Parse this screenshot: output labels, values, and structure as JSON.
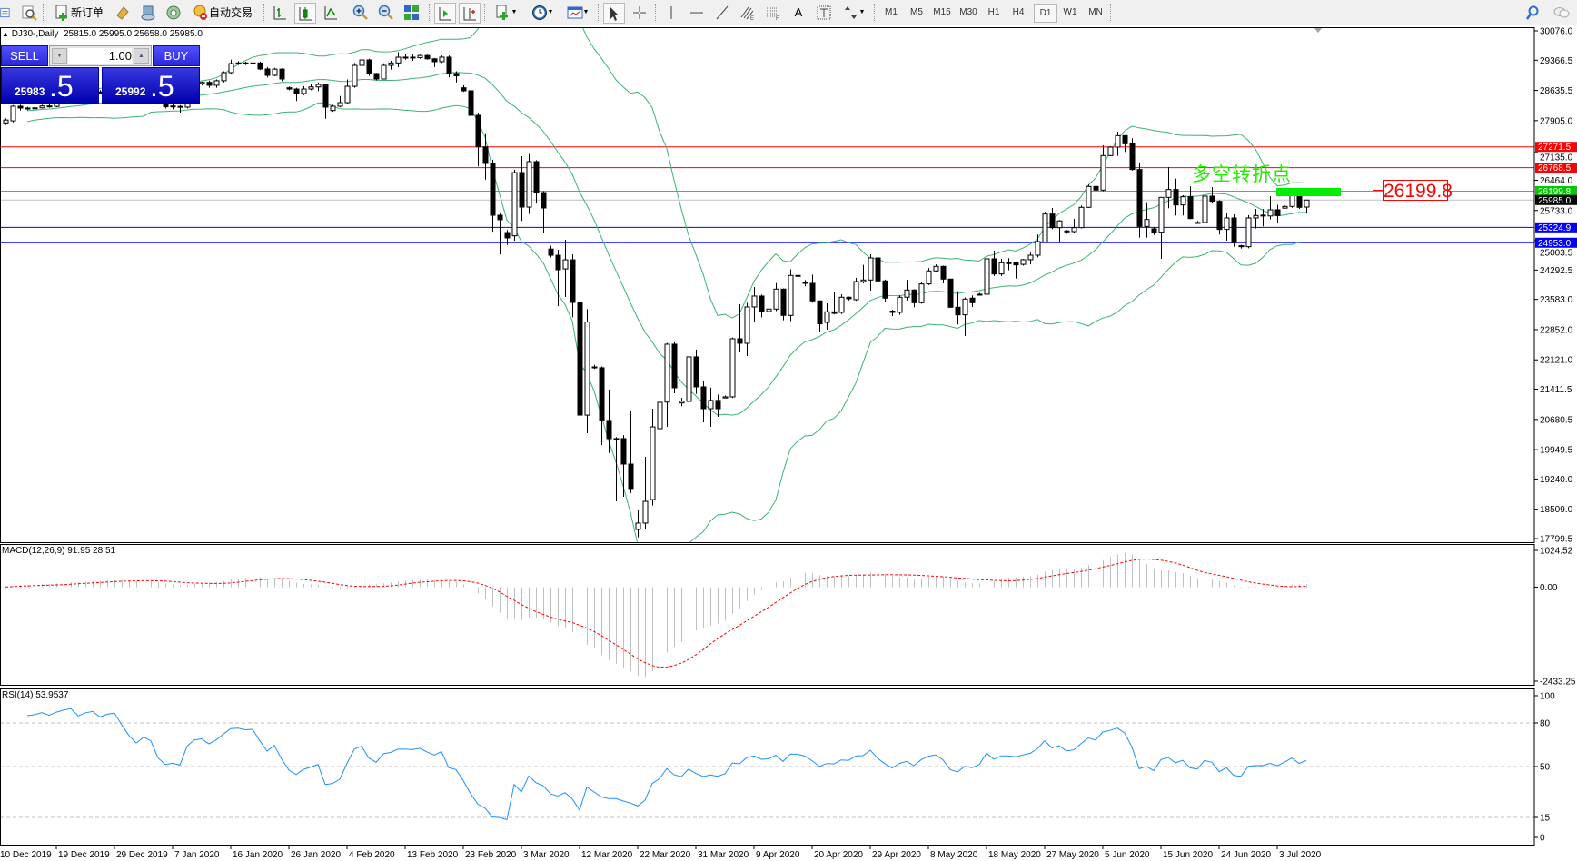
{
  "toolbar": {
    "new_order_label": "新订单",
    "auto_trade_label": "自动交易",
    "text_tool_label": "A",
    "timeframes": [
      "M1",
      "M5",
      "M15",
      "M30",
      "H1",
      "H4",
      "D1",
      "W1",
      "MN"
    ],
    "active_timeframe": "D1",
    "icons": [
      "profiles-icon",
      "data-window-icon",
      "new-order-icon",
      "market-watch-icon",
      "navigator-icon",
      "terminal-icon",
      "auto-trading-icon",
      "bar-chart-icon",
      "candlestick-icon",
      "line-chart-icon",
      "zoom-in-icon",
      "zoom-out-icon",
      "tile-windows-icon",
      "auto-scroll-icon",
      "chart-shift-icon",
      "indicators-icon",
      "periods-icon",
      "templates-icon",
      "cursor-icon",
      "crosshair-icon",
      "vertical-line-icon",
      "horizontal-line-icon",
      "trendline-icon",
      "fibonacci-expansion-icon",
      "fibonacci-fan-icon",
      "text-icon",
      "label-icon",
      "arrows-icon",
      "search-icon",
      "chat-icon"
    ]
  },
  "chart": {
    "header_arrow": "▲",
    "symbol": "DJ30-,Daily",
    "ohlc": "25815.0 25995.0 25658.0 25985.0",
    "annotation_text": "多空转折点",
    "pivot_label": "26199.8"
  },
  "trade_panel": {
    "sell_label": "SELL",
    "buy_label": "BUY",
    "lot": "1.00",
    "sell_price_main": "25983",
    "sell_price_frac": ".5",
    "buy_price_main": "25992",
    "buy_price_frac": ".5",
    "spin_down": "▼",
    "spin_up": "▲"
  },
  "colors": {
    "bollinger": "#3cb371",
    "macd_histogram": "#c0c0c0",
    "macd_signal": "#ff0000",
    "rsi_line": "#1e90ff",
    "bid_line": "#c0c0c0"
  },
  "chart_data": {
    "type": "candlestick",
    "indicators": [
      "Bollinger Bands(20,2)"
    ],
    "price_axis": {
      "range": [
        17799.5,
        30076.0
      ],
      "ticks": [
        "30076.0",
        "29366.5",
        "28635.5",
        "27905.0",
        "27135.0",
        "26464.0",
        "25733.0",
        "25003.5",
        "24292.5",
        "23583.0",
        "22852.0",
        "22121.0",
        "21411.5",
        "20680.5",
        "19949.5",
        "19240.0",
        "18509.0",
        "17799.5"
      ]
    },
    "horizontal_lines": [
      {
        "price": 27271.5,
        "label": "27271.5",
        "color": "#ff0000",
        "label_bg": "#ff0000"
      },
      {
        "price": 26768.5,
        "label": "26768.5",
        "color": "#ff0000",
        "label_bg": "#ff0000"
      },
      {
        "price": 26199.8,
        "label": "26199.8",
        "color": "#33cc33",
        "label_bg": "#00cc00"
      },
      {
        "price": 25985.0,
        "label": "25985.0",
        "color": "#c0c0c0",
        "label_bg": "#000000"
      },
      {
        "price": 25324.9,
        "label": "25324.9",
        "color": "#0000ff",
        "label_bg": "#0000ff"
      },
      {
        "price": 24953.0,
        "label": "24953.0",
        "color": "#0000ff",
        "label_bg": "#0000ff"
      }
    ],
    "x_tick_labels": [
      {
        "bar": -1,
        "label": "10 Dec 2019"
      },
      {
        "bar": 7,
        "label": "19 Dec 2019"
      },
      {
        "bar": 15,
        "label": "29 Dec 2019"
      },
      {
        "bar": 23,
        "label": "7 Jan 2020"
      },
      {
        "bar": 31,
        "label": "16 Jan 2020"
      },
      {
        "bar": 39,
        "label": "26 Jan 2020"
      },
      {
        "bar": 47,
        "label": "4 Feb 2020"
      },
      {
        "bar": 55,
        "label": "13 Feb 2020"
      },
      {
        "bar": 63,
        "label": "23 Feb 2020"
      },
      {
        "bar": 71,
        "label": "3 Mar 2020"
      },
      {
        "bar": 79,
        "label": "12 Mar 2020"
      },
      {
        "bar": 87,
        "label": "22 Mar 2020"
      },
      {
        "bar": 95,
        "label": "31 Mar 2020"
      },
      {
        "bar": 103,
        "label": "9 Apr 2020"
      },
      {
        "bar": 111,
        "label": "20 Apr 2020"
      },
      {
        "bar": 119,
        "label": "29 Apr 2020"
      },
      {
        "bar": 127,
        "label": "8 May 2020"
      },
      {
        "bar": 135,
        "label": "18 May 2020"
      },
      {
        "bar": 143,
        "label": "27 May 2020"
      },
      {
        "bar": 151,
        "label": "5 Jun 2020"
      },
      {
        "bar": 159,
        "label": "15 Jun 2020"
      },
      {
        "bar": 167,
        "label": "24 Jun 2020"
      },
      {
        "bar": 175,
        "label": "3 Jul 2020"
      }
    ],
    "candles_ohlc": [
      [
        27850,
        27960,
        27800,
        27920
      ],
      [
        27900,
        28280,
        27860,
        28254
      ],
      [
        28254,
        28290,
        28150,
        28210
      ],
      [
        28210,
        28240,
        28160,
        28195
      ],
      [
        28195,
        28240,
        28170,
        28215
      ],
      [
        28215,
        28290,
        28200,
        28260
      ],
      [
        28260,
        28300,
        28220,
        28250
      ],
      [
        28250,
        28350,
        28230,
        28330
      ],
      [
        28330,
        28420,
        28300,
        28400
      ],
      [
        28400,
        28480,
        28380,
        28460
      ],
      [
        28460,
        28520,
        28400,
        28420
      ],
      [
        28420,
        28560,
        28400,
        28540
      ],
      [
        28540,
        28620,
        28520,
        28600
      ],
      [
        28600,
        28640,
        28540,
        28560
      ],
      [
        28560,
        28700,
        28550,
        28680
      ],
      [
        28680,
        28760,
        28660,
        28740
      ],
      [
        28740,
        28800,
        28600,
        28640
      ],
      [
        28640,
        28700,
        28500,
        28540
      ],
      [
        28540,
        28600,
        28420,
        28460
      ],
      [
        28460,
        28620,
        28440,
        28600
      ],
      [
        28600,
        28680,
        28540,
        28560
      ],
      [
        28560,
        28600,
        28300,
        28340
      ],
      [
        28340,
        28400,
        28200,
        28240
      ],
      [
        28240,
        28300,
        28180,
        28260
      ],
      [
        28250,
        28280,
        28100,
        28232
      ],
      [
        28232,
        28650,
        28200,
        28620
      ],
      [
        28620,
        28820,
        28600,
        28800
      ],
      [
        28800,
        28850,
        28760,
        28830
      ],
      [
        28830,
        28870,
        28700,
        28760
      ],
      [
        28760,
        28900,
        28700,
        28870
      ],
      [
        28870,
        29100,
        28830,
        29066
      ],
      [
        29066,
        29380,
        29040,
        29285
      ],
      [
        29285,
        29340,
        29250,
        29300
      ],
      [
        29300,
        29330,
        29250,
        29280
      ],
      [
        29280,
        29320,
        29240,
        29300
      ],
      [
        29300,
        29330,
        29130,
        29154
      ],
      [
        29154,
        29200,
        28950,
        29000
      ],
      [
        29000,
        29180,
        28980,
        29150
      ],
      [
        29150,
        29170,
        28860,
        28912
      ],
      [
        28700,
        28730,
        28640,
        28670
      ],
      [
        28670,
        28700,
        28380,
        28560
      ],
      [
        28560,
        28740,
        28520,
        28670
      ],
      [
        28670,
        28800,
        28640,
        28720
      ],
      [
        28720,
        28830,
        28620,
        28780
      ],
      [
        28780,
        28800,
        27950,
        28232
      ],
      [
        28150,
        28290,
        28120,
        28254
      ],
      [
        28254,
        28500,
        28230,
        28341
      ],
      [
        28341,
        28900,
        28320,
        28736
      ],
      [
        28736,
        29300,
        28700,
        29241
      ],
      [
        29241,
        29440,
        29200,
        29372
      ],
      [
        29372,
        29400,
        28990,
        29044
      ],
      [
        29044,
        29060,
        28880,
        28912
      ],
      [
        28912,
        29290,
        28900,
        29241
      ],
      [
        29241,
        29350,
        29140,
        29300
      ],
      [
        29300,
        29560,
        29200,
        29439
      ],
      [
        29439,
        29520,
        29380,
        29440
      ],
      [
        29440,
        29520,
        29350,
        29430
      ],
      [
        29430,
        29500,
        29400,
        29480
      ],
      [
        29480,
        29500,
        29380,
        29400
      ],
      [
        29400,
        29420,
        29200,
        29330
      ],
      [
        29330,
        29480,
        29300,
        29440
      ],
      [
        29440,
        29480,
        28950,
        29044
      ],
      [
        29044,
        29100,
        28830,
        28990
      ],
      [
        28700,
        28760,
        28600,
        28627
      ],
      [
        28627,
        28650,
        27800,
        28034
      ],
      [
        28034,
        28100,
        26800,
        27271
      ],
      [
        27271,
        27600,
        26480,
        26870
      ],
      [
        26870,
        26960,
        25220,
        25618
      ],
      [
        25618,
        25660,
        24670,
        25510
      ],
      [
        25200,
        25260,
        24900,
        25070
      ],
      [
        25120,
        26720,
        25000,
        26650
      ],
      [
        26650,
        27045,
        25480,
        25815
      ],
      [
        25815,
        27100,
        25650,
        26914
      ],
      [
        26914,
        26950,
        25900,
        26167
      ],
      [
        26167,
        26200,
        25180,
        25794
      ],
      [
        24800,
        24880,
        24600,
        24650
      ],
      [
        24650,
        24784,
        23420,
        24300
      ],
      [
        24320,
        25025,
        23642,
        24540
      ],
      [
        24540,
        24670,
        23150,
        23510
      ],
      [
        23510,
        23580,
        20550,
        20785
      ],
      [
        20785,
        23350,
        20347,
        23035
      ],
      [
        21950,
        22000,
        21900,
        21930
      ],
      [
        21930,
        21960,
        20062,
        20655
      ],
      [
        20655,
        21400,
        19870,
        20216
      ],
      [
        20216,
        20250,
        18700,
        20216
      ],
      [
        20216,
        20300,
        18810,
        19600
      ],
      [
        19600,
        20875,
        18900,
        19010
      ],
      [
        18020,
        18481,
        17830,
        18174
      ],
      [
        18174,
        19777,
        18020,
        18700
      ],
      [
        18743,
        20940,
        18600,
        20500
      ],
      [
        20456,
        21885,
        20282,
        21095
      ],
      [
        21100,
        22530,
        20500,
        22500
      ],
      [
        22500,
        22550,
        21314,
        21446
      ],
      [
        21080,
        21200,
        21000,
        21120
      ],
      [
        21117,
        22250,
        21000,
        22193
      ],
      [
        22193,
        22370,
        21300,
        21468
      ],
      [
        21468,
        21600,
        20611,
        20940
      ],
      [
        20940,
        21450,
        20500,
        21140
      ],
      [
        21140,
        21280,
        20743,
        20940
      ],
      [
        21200,
        21260,
        21190,
        21226
      ],
      [
        21226,
        22660,
        21200,
        22631
      ],
      [
        22631,
        23466,
        22302,
        22522
      ],
      [
        22522,
        23500,
        22214,
        23400
      ],
      [
        23400,
        23883,
        23027,
        23664
      ],
      [
        23664,
        23700,
        23150,
        23290
      ],
      [
        23290,
        23400,
        22954,
        23350
      ],
      [
        23350,
        23980,
        23300,
        23832
      ],
      [
        23832,
        23850,
        23078,
        23196
      ],
      [
        23196,
        24308,
        23060,
        24162
      ],
      [
        24162,
        24300,
        23708,
        24147
      ],
      [
        24000,
        24050,
        23900,
        23971
      ],
      [
        23971,
        24180,
        23500,
        23547
      ],
      [
        23547,
        23560,
        22808,
        22991
      ],
      [
        23027,
        23488,
        22850,
        23283
      ],
      [
        23283,
        23760,
        23220,
        23246
      ],
      [
        23269,
        23708,
        23230,
        23635
      ],
      [
        23635,
        23650,
        23560,
        23598
      ],
      [
        23576,
        24103,
        23550,
        24015
      ],
      [
        24015,
        24418,
        23970,
        24052
      ],
      [
        24052,
        24674,
        23796,
        24586
      ],
      [
        24586,
        24784,
        23850,
        24030
      ],
      [
        24030,
        24060,
        23518,
        23613
      ],
      [
        23300,
        23330,
        23180,
        23269
      ],
      [
        23269,
        23680,
        23210,
        23635
      ],
      [
        23635,
        24052,
        23560,
        23810
      ],
      [
        23810,
        23830,
        23393,
        23503
      ],
      [
        23503,
        23990,
        23480,
        23957
      ],
      [
        23957,
        24340,
        23930,
        24272
      ],
      [
        24272,
        24430,
        24250,
        24381
      ],
      [
        24381,
        24400,
        23970,
        24074
      ],
      [
        24074,
        24080,
        23380,
        23393
      ],
      [
        23393,
        23780,
        22976,
        23210
      ],
      [
        23210,
        23630,
        22698,
        23591
      ],
      [
        23613,
        23680,
        23400,
        23503
      ],
      [
        23700,
        23740,
        23680,
        23708
      ],
      [
        23708,
        24600,
        23690,
        24564
      ],
      [
        24564,
        24762,
        24150,
        24198
      ],
      [
        24198,
        24560,
        24150,
        24469
      ],
      [
        24450,
        24580,
        24290,
        24469
      ],
      [
        24469,
        24500,
        24089,
        24418
      ],
      [
        24430,
        24560,
        24400,
        24543
      ],
      [
        24543,
        24711,
        24430,
        24652
      ],
      [
        24652,
        25150,
        24600,
        24982
      ],
      [
        24967,
        25700,
        24950,
        25648
      ],
      [
        25648,
        25794,
        25280,
        25318
      ],
      [
        25318,
        25500,
        24981,
        25480
      ],
      [
        25230,
        25260,
        25170,
        25238
      ],
      [
        25223,
        25530,
        25180,
        25318
      ],
      [
        25318,
        25850,
        25300,
        25809
      ],
      [
        25809,
        26360,
        25800,
        26314
      ],
      [
        26314,
        26320,
        26050,
        26226
      ],
      [
        26226,
        27309,
        26200,
        27060
      ],
      [
        27060,
        27290,
        27050,
        27265
      ],
      [
        27265,
        27639,
        27053,
        27543
      ],
      [
        27543,
        27550,
        27148,
        27346
      ],
      [
        27346,
        27478,
        26700,
        26724
      ],
      [
        26724,
        26885,
        25077,
        25347
      ],
      [
        25347,
        25933,
        25077,
        25515
      ],
      [
        25289,
        25330,
        25140,
        25208
      ],
      [
        25208,
        26050,
        24564,
        26050
      ],
      [
        26050,
        26782,
        25787,
        26240
      ],
      [
        26240,
        26504,
        25611,
        25867
      ],
      [
        25867,
        26100,
        25611,
        26065
      ],
      [
        26065,
        26321,
        25520,
        25538
      ],
      [
        25440,
        25480,
        25420,
        25443
      ],
      [
        25443,
        26080,
        25430,
        26080
      ],
      [
        26080,
        26299,
        25900,
        25955
      ],
      [
        25955,
        25980,
        25150,
        25274
      ],
      [
        25274,
        25662,
        25003,
        25552
      ],
      [
        25552,
        25640,
        24857,
        24952
      ],
      [
        24880,
        24900,
        24810,
        24857
      ],
      [
        24857,
        25620,
        24820,
        25552
      ],
      [
        25552,
        25772,
        25296,
        25611
      ],
      [
        25620,
        25770,
        25350,
        25600
      ],
      [
        25600,
        26080,
        25520,
        25750
      ],
      [
        25750,
        25870,
        25443,
        25611
      ],
      [
        25790,
        25850,
        25780,
        25830
      ],
      [
        25830,
        26110,
        25800,
        26101
      ],
      [
        26101,
        26110,
        25772,
        25809
      ],
      [
        25815,
        25995,
        25658,
        25985
      ]
    ]
  },
  "macd": {
    "label": "MACD(12,26,9) 91.95 28.51",
    "axis_ticks": [
      "1024.52",
      "0.00",
      "-2433.25"
    ],
    "range": [
      -2433.25,
      1024.52
    ]
  },
  "rsi": {
    "label": "RSI(14) 53.9537",
    "axis_ticks": [
      "100",
      "80",
      "50",
      "15",
      "0"
    ],
    "levels": [
      80,
      50,
      15
    ]
  }
}
